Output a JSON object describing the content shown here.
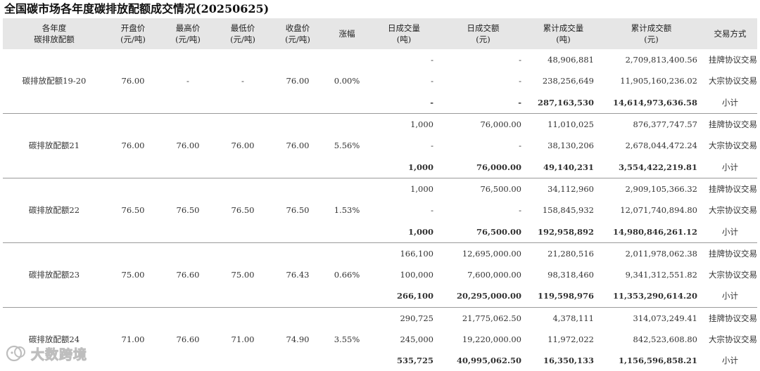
{
  "title": "全国碳市场各年度碳排放配额成交情况(20250625)",
  "headers": [
    [
      "各年度",
      "碳排放配额"
    ],
    [
      "开盘价",
      "(元/吨)"
    ],
    [
      "最高价",
      "(元/吨)"
    ],
    [
      "最低价",
      "(元/吨)"
    ],
    [
      "收盘价",
      "(元/吨)"
    ],
    [
      "涨幅"
    ],
    [
      "日成交量",
      "(吨)"
    ],
    [
      "日成交额",
      "(元)"
    ],
    [
      "累计成交量",
      "(吨)"
    ],
    [
      "累计成交额",
      "(元)"
    ],
    [
      "交易方式"
    ]
  ],
  "groups": [
    {
      "name": "碳排放配额19-20",
      "open": "76.00",
      "high": "-",
      "low": "-",
      "close": "76.00",
      "change": "0.00%",
      "rows": [
        {
          "daily_vol": "-",
          "daily_amt": "-",
          "cum_vol": "48,906,881",
          "cum_amt": "2,709,813,400.56",
          "way": "挂牌协议交易"
        },
        {
          "daily_vol": "-",
          "daily_amt": "-",
          "cum_vol": "238,256,649",
          "cum_amt": "11,905,160,236.02",
          "way": "大宗协议交易"
        },
        {
          "daily_vol": "-",
          "daily_amt": "-",
          "cum_vol": "287,163,530",
          "cum_amt": "14,614,973,636.58",
          "way": "小计"
        }
      ]
    },
    {
      "name": "碳排放配额21",
      "open": "76.00",
      "high": "76.00",
      "low": "76.00",
      "close": "76.00",
      "change": "5.56%",
      "rows": [
        {
          "daily_vol": "1,000",
          "daily_amt": "76,000.00",
          "cum_vol": "11,010,025",
          "cum_amt": "876,377,747.57",
          "way": "挂牌协议交易"
        },
        {
          "daily_vol": "-",
          "daily_amt": "-",
          "cum_vol": "38,130,206",
          "cum_amt": "2,678,044,472.24",
          "way": "大宗协议交易"
        },
        {
          "daily_vol": "1,000",
          "daily_amt": "76,000.00",
          "cum_vol": "49,140,231",
          "cum_amt": "3,554,422,219.81",
          "way": "小计"
        }
      ]
    },
    {
      "name": "碳排放配额22",
      "open": "76.50",
      "high": "76.50",
      "low": "76.50",
      "close": "76.50",
      "change": "1.53%",
      "rows": [
        {
          "daily_vol": "1,000",
          "daily_amt": "76,500.00",
          "cum_vol": "34,112,960",
          "cum_amt": "2,909,105,366.32",
          "way": "挂牌协议交易"
        },
        {
          "daily_vol": "-",
          "daily_amt": "-",
          "cum_vol": "158,845,932",
          "cum_amt": "12,071,740,894.80",
          "way": "大宗协议交易"
        },
        {
          "daily_vol": "1,000",
          "daily_amt": "76,500.00",
          "cum_vol": "192,958,892",
          "cum_amt": "14,980,846,261.12",
          "way": "小计"
        }
      ]
    },
    {
      "name": "碳排放配额23",
      "open": "75.00",
      "high": "76.60",
      "low": "75.00",
      "close": "76.43",
      "change": "0.66%",
      "rows": [
        {
          "daily_vol": "166,100",
          "daily_amt": "12,695,000.00",
          "cum_vol": "21,280,516",
          "cum_amt": "2,011,978,062.38",
          "way": "挂牌协议交易"
        },
        {
          "daily_vol": "100,000",
          "daily_amt": "7,600,000.00",
          "cum_vol": "98,318,460",
          "cum_amt": "9,341,312,551.82",
          "way": "大宗协议交易"
        },
        {
          "daily_vol": "266,100",
          "daily_amt": "20,295,000.00",
          "cum_vol": "119,598,976",
          "cum_amt": "11,353,290,614.20",
          "way": "小计"
        }
      ]
    },
    {
      "name": "碳排放配额24",
      "open": "71.00",
      "high": "76.60",
      "low": "71.00",
      "close": "74.90",
      "change": "3.55%",
      "rows": [
        {
          "daily_vol": "290,725",
          "daily_amt": "21,775,062.50",
          "cum_vol": "4,378,111",
          "cum_amt": "314,073,249.41",
          "way": "挂牌协议交易"
        },
        {
          "daily_vol": "245,000",
          "daily_amt": "19,220,000.00",
          "cum_vol": "11,972,022",
          "cum_amt": "842,523,608.80",
          "way": "大宗协议交易"
        },
        {
          "daily_vol": "535,725",
          "daily_amt": "40,995,062.50",
          "cum_vol": "16,350,133",
          "cum_amt": "1,156,596,858.21",
          "way": "小计"
        }
      ]
    }
  ],
  "watermark": {
    "text": "大数跨境",
    "icon": "brand-logo-icon"
  },
  "colors": {
    "header_bg": "#e6e6e6",
    "divider": "#9a9a9a"
  }
}
